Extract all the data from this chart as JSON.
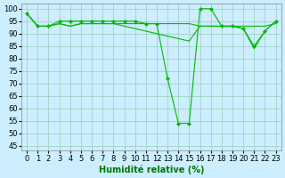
{
  "xlabel": "Humidité relative (%)",
  "background_color": "#cceeff",
  "grid_color": "#99ccbb",
  "line_color": "#00bb00",
  "marker_color": "#00bb00",
  "xlim": [
    -0.5,
    23.5
  ],
  "ylim": [
    43,
    102
  ],
  "yticks": [
    45,
    50,
    55,
    60,
    65,
    70,
    75,
    80,
    85,
    90,
    95,
    100
  ],
  "xticks": [
    0,
    1,
    2,
    3,
    4,
    5,
    6,
    7,
    8,
    9,
    10,
    11,
    12,
    13,
    14,
    15,
    16,
    17,
    18,
    19,
    20,
    21,
    22,
    23
  ],
  "series_main": [
    98,
    93,
    93,
    95,
    95,
    95,
    95,
    95,
    95,
    95,
    95,
    94,
    94,
    72,
    54,
    54,
    100,
    100,
    93,
    93,
    92,
    85,
    91,
    95
  ],
  "series_flat": [
    98,
    93,
    93,
    94,
    93,
    94,
    94,
    94,
    94,
    94,
    94,
    94,
    94,
    94,
    94,
    94,
    93,
    93,
    93,
    93,
    93,
    93,
    93,
    94
  ],
  "series_decline": [
    98,
    93,
    93,
    94,
    93,
    94,
    94,
    94,
    94,
    93,
    92,
    91,
    90,
    89,
    88,
    87,
    93,
    93,
    93,
    93,
    92,
    84,
    91,
    95
  ],
  "xlabel_fontsize": 7,
  "tick_fontsize": 6
}
